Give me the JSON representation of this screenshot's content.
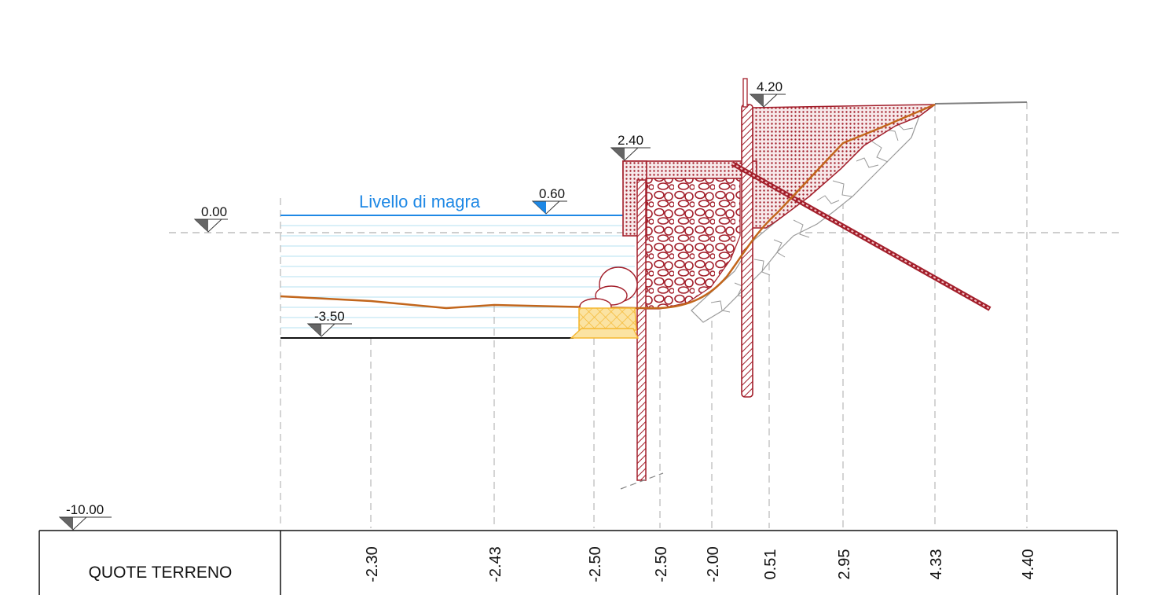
{
  "levels": {
    "zero": "0.00",
    "low_water_value": "0.60",
    "bed": "-3.50",
    "datum": "-10.00",
    "quay_top": "2.40",
    "wall_top": "4.20"
  },
  "water_label": "Livello di magra",
  "colors": {
    "water": "#1e88e5",
    "concrete": "#a31f2b",
    "ground_line": "#c2661c",
    "geotextile": "#f5b731",
    "guide": "#9a9a9a",
    "level_marker": "#666666"
  },
  "table": {
    "row_label": "QUOTE TERRENO",
    "columns": [
      "-2.30",
      "-2.43",
      "-2.50",
      "-2.50",
      "-2.00",
      "0.51",
      "2.95",
      "4.33",
      "4.40"
    ]
  }
}
